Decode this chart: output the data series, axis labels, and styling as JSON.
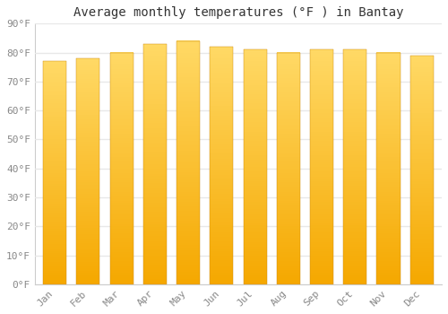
{
  "title": "Average monthly temperatures (°F ) in Bantay",
  "months": [
    "Jan",
    "Feb",
    "Mar",
    "Apr",
    "May",
    "Jun",
    "Jul",
    "Aug",
    "Sep",
    "Oct",
    "Nov",
    "Dec"
  ],
  "values": [
    77,
    78,
    80,
    83,
    84,
    82,
    81,
    80,
    81,
    81,
    80,
    79
  ],
  "bar_color_bottom": "#F5A800",
  "bar_color_top": "#FFD966",
  "background_color": "#FFFFFF",
  "grid_color": "#E8E8E8",
  "ylim": [
    0,
    90
  ],
  "yticks": [
    0,
    10,
    20,
    30,
    40,
    50,
    60,
    70,
    80,
    90
  ],
  "ytick_labels": [
    "0°F",
    "10°F",
    "20°F",
    "30°F",
    "40°F",
    "50°F",
    "60°F",
    "70°F",
    "80°F",
    "90°F"
  ],
  "title_fontsize": 10,
  "tick_fontsize": 8,
  "bar_width": 0.7,
  "font_family": "monospace",
  "n_gradient_steps": 100
}
